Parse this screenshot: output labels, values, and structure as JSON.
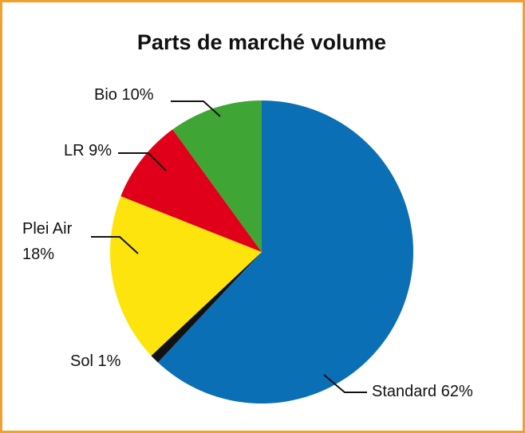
{
  "chart_data": {
    "type": "pie",
    "title": "Parts de marché volume",
    "categories": [
      "Standard",
      "Sol",
      "Plei Air",
      "LR",
      "Bio"
    ],
    "values": [
      62,
      1,
      18,
      9,
      10
    ],
    "value_labels": [
      "62%",
      "1%",
      "18%",
      "9%",
      "10%"
    ],
    "colors": [
      "#0a6fb4",
      "#111111",
      "#fce40c",
      "#e1001a",
      "#3fa535"
    ]
  }
}
